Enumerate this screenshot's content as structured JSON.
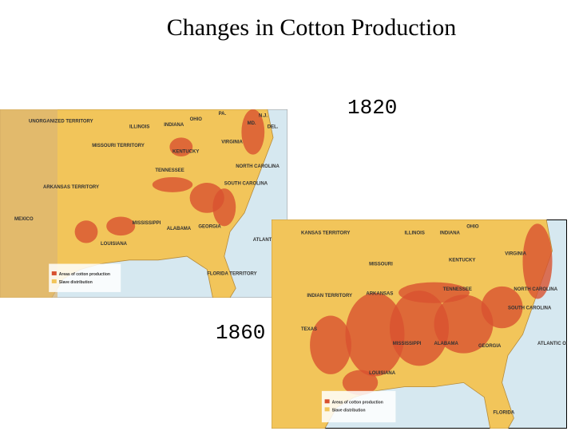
{
  "slide": {
    "title": "Changes in Cotton Production",
    "label_1820": "1820",
    "label_1860": "1860"
  },
  "maps": [
    {
      "year": "1820",
      "labels": [
        "UNORGANIZED TERRITORY",
        "ILLINOIS",
        "INDIANA",
        "OHIO",
        "PA.",
        "N.J.",
        "MD.",
        "DEL.",
        "MISSOURI TERRITORY",
        "VIRGINIA",
        "KENTUCKY",
        "TENNESSEE",
        "NORTH CAROLINA",
        "ARKANSAS TERRITORY",
        "SOUTH CAROLINA",
        "MEXICO",
        "LOUISIANA",
        "MISSISSIPPI",
        "ALABAMA",
        "GEORGIA",
        "ATLANTIC OCEAN",
        "FLORIDA TERRITORY"
      ],
      "legend": [
        "Areas of cotton production",
        "Slave distribution"
      ]
    },
    {
      "year": "1860",
      "labels": [
        "KANSAS TERRITORY",
        "ILLINOIS",
        "INDIANA",
        "OHIO",
        "MISSOURI",
        "KENTUCKY",
        "VIRGINIA",
        "INDIAN TERRITORY",
        "ARKANSAS",
        "TENNESSEE",
        "NORTH CAROLINA",
        "SOUTH CAROLINA",
        "TEXAS",
        "MISSISSIPPI",
        "ALABAMA",
        "GEORGIA",
        "LOUISIANA",
        "FLORIDA",
        "ATLANTIC OCEAN"
      ],
      "legend": [
        "Areas of cotton production",
        "Slave distribution"
      ]
    }
  ]
}
